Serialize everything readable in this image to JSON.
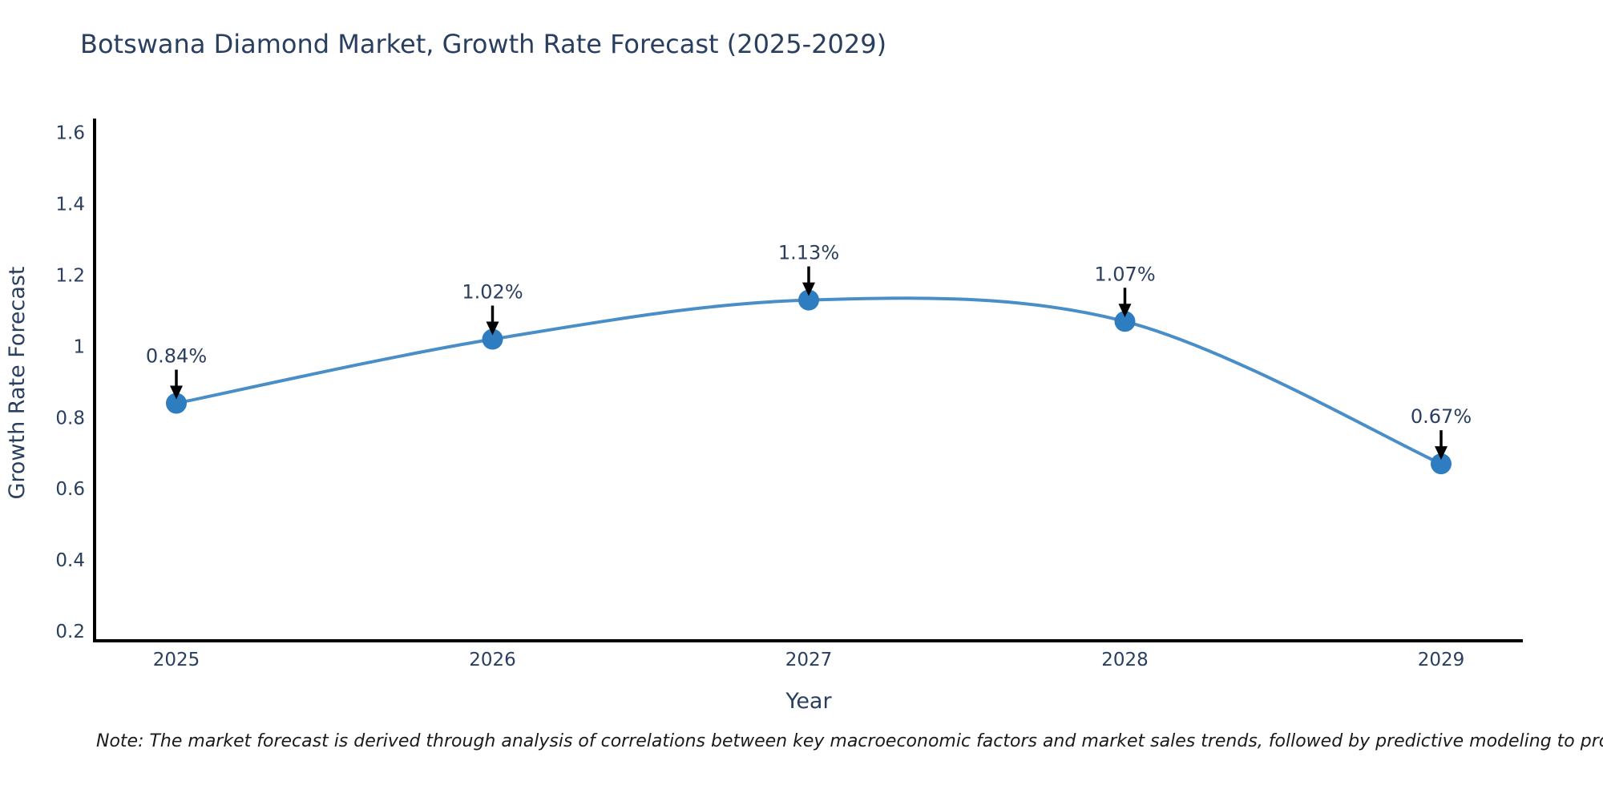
{
  "chart_data": {
    "type": "line",
    "line_shape": "spline",
    "title": "Botswana Diamond Market, Growth Rate Forecast (2025-2029)",
    "xlabel": "Year",
    "ylabel": "Growth Rate Forecast",
    "categories": [
      "2025",
      "2026",
      "2027",
      "2028",
      "2029"
    ],
    "values": [
      0.84,
      1.02,
      1.13,
      1.07,
      0.67
    ],
    "point_labels": [
      "0.84%",
      "1.02%",
      "1.13%",
      "1.07%",
      "0.67%"
    ],
    "yticks": [
      0.2,
      0.4,
      0.6,
      0.8,
      1,
      1.2,
      1.4,
      1.6
    ],
    "ytick_labels": [
      "0.2",
      "0.4",
      "0.6",
      "0.8",
      "1",
      "1.2",
      "1.4",
      "1.6"
    ],
    "ylim": [
      0.165,
      1.64
    ],
    "grid": false,
    "legend": "none",
    "colors": {
      "line": "#4a8ec8",
      "marker": "#2e7dc0",
      "axis": "#000000",
      "arrow": "#000000",
      "title": "#2a3f5f",
      "tick": "#2a3f5f",
      "annotation": "#2a3f5f"
    },
    "note": "Note: The market forecast is derived through analysis of correlations between key macroeconomic factors and market sales trends, followed by predictive modeling to project future sales"
  }
}
